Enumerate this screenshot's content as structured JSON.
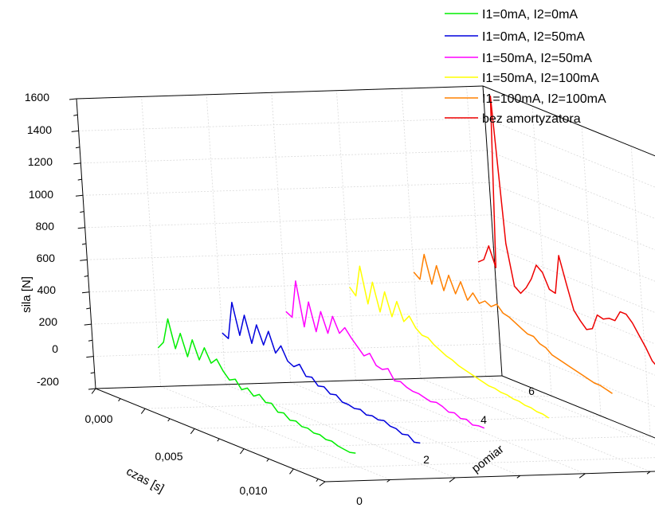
{
  "chart_data": {
    "type": "line",
    "subtype": "3d-waterfall",
    "title": "",
    "zlabel": "sila [N]",
    "xlabel": "czas [s]",
    "ylabel": "pomiar",
    "zlim": [
      -200,
      1600
    ],
    "xlim": [
      0,
      0.012
    ],
    "ylim": [
      0,
      6
    ],
    "z_ticks": [
      "1600",
      "1400",
      "1200",
      "1000",
      "800",
      "600",
      "400",
      "200",
      "0",
      "-200"
    ],
    "x_ticks": [
      "0,000",
      "0,005",
      "0,010"
    ],
    "y_ticks": [
      "0",
      "2",
      "4",
      "6"
    ],
    "grid": true,
    "legend_position": "top-right",
    "x": [
      0.0,
      0.0003,
      0.0006,
      0.0009,
      0.0012,
      0.0015,
      0.0018,
      0.0021,
      0.0024,
      0.0027,
      0.003,
      0.0033,
      0.0036,
      0.0039,
      0.0042,
      0.0045,
      0.0048,
      0.0051,
      0.0054,
      0.0057,
      0.006,
      0.0063,
      0.0066,
      0.0069,
      0.0072,
      0.0075,
      0.0078,
      0.0081,
      0.0084,
      0.0087,
      0.009,
      0.0093,
      0.0096,
      0.0099
    ],
    "series": [
      {
        "name": "I1=0mA, I2=0mA",
        "color": "#00ee00",
        "pomiar": 1,
        "values": [
          40,
          90,
          250,
          80,
          190,
          60,
          180,
          70,
          160,
          80,
          120,
          60,
          20,
          40,
          -10,
          15,
          -20,
          5,
          -30,
          -20,
          -60,
          -50,
          -80,
          -70,
          -90,
          -85,
          -100,
          -95,
          -110,
          -105,
          -120,
          -125,
          -130,
          -120
        ]
      },
      {
        "name": "I1=0mA, I2=50mA",
        "color": "#0000dd",
        "pomiar": 2,
        "values": [
          120,
          100,
          340,
          150,
          290,
          130,
          260,
          150,
          250,
          130,
          190,
          110,
          90,
          120,
          60,
          70,
          30,
          40,
          10,
          20,
          -10,
          -10,
          -20,
          -10,
          -30,
          -20,
          -30,
          -20,
          -40,
          -40,
          -60,
          -50,
          -80,
          -70
        ]
      },
      {
        "name": "I1=50mA, I2=50mA",
        "color": "#ff00ff",
        "pomiar": 3,
        "values": [
          240,
          220,
          460,
          190,
          360,
          190,
          330,
          210,
          330,
          240,
          290,
          240,
          200,
          160,
          190,
          130,
          120,
          140,
          80,
          90,
          70,
          60,
          60,
          50,
          40,
          50,
          40,
          20,
          30,
          10,
          20,
          0,
          10,
          10
        ]
      },
      {
        "name": "I1=50mA, I2=100mA",
        "color": "#ffff00",
        "pomiar": 4,
        "values": [
          380,
          340,
          540,
          320,
          470,
          300,
          440,
          300,
          410,
          300,
          350,
          290,
          260,
          260,
          230,
          210,
          190,
          180,
          160,
          150,
          140,
          130,
          120,
          110,
          110,
          100,
          100,
          90,
          90,
          80,
          80,
          70,
          70,
          60
        ]
      },
      {
        "name": "I1=100mA, I2=100mA",
        "color": "#ff8000",
        "pomiar": 5,
        "values": [
          460,
          430,
          600,
          430,
          560,
          420,
          530,
          430,
          520,
          420,
          480,
          430,
          460,
          440,
          470,
          430,
          420,
          400,
          380,
          360,
          360,
          330,
          320,
          290,
          280,
          270,
          260,
          250,
          240,
          230,
          220,
          220,
          210,
          200
        ]
      },
      {
        "name": "bez amortyzatora",
        "color": "#ee0000",
        "pomiar": 6,
        "values": [
          510,
          540,
          640,
          520,
          1600,
          700,
          450,
          420,
          470,
          540,
          640,
          610,
          520,
          510,
          760,
          600,
          450,
          400,
          360,
          380,
          480,
          470,
          490,
          490,
          560,
          560,
          520,
          460,
          400,
          330,
          300,
          330,
          350,
          330
        ]
      }
    ]
  }
}
